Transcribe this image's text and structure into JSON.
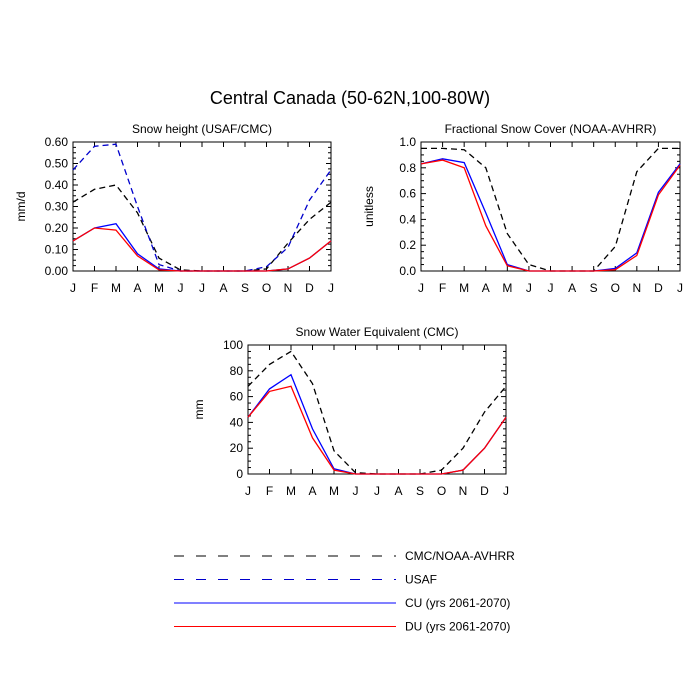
{
  "figure": {
    "title": "Central Canada (50-62N,100-80W)"
  },
  "colors": {
    "cmc": "#000000",
    "usaf": "#0000cc",
    "cu": "#0000ff",
    "du": "#ff0000"
  },
  "months": [
    "J",
    "F",
    "M",
    "A",
    "M",
    "J",
    "J",
    "A",
    "S",
    "O",
    "N",
    "D",
    "J"
  ],
  "chart_data": [
    {
      "id": "snow-height",
      "type": "line",
      "title": "Snow height (USAF/CMC)",
      "ylabel": "mm/d",
      "xlabel": "",
      "ylim": [
        0,
        0.6
      ],
      "yticks": [
        "0.00",
        "0.10",
        "0.20",
        "0.30",
        "0.40",
        "0.50",
        "0.60"
      ],
      "yticks_values": [
        0,
        0.1,
        0.2,
        0.3,
        0.4,
        0.5,
        0.6
      ],
      "series": [
        {
          "key": "cmc",
          "dashed": true,
          "values": [
            0.32,
            0.38,
            0.4,
            0.27,
            0.06,
            0.005,
            0.0,
            0.0,
            0.0,
            0.01,
            0.13,
            0.24,
            0.32
          ]
        },
        {
          "key": "usaf",
          "dashed": true,
          "values": [
            0.47,
            0.58,
            0.59,
            0.3,
            0.03,
            0.0,
            0.0,
            0.0,
            0.0,
            0.02,
            0.11,
            0.33,
            0.47
          ]
        },
        {
          "key": "cu",
          "dashed": false,
          "values": [
            0.14,
            0.2,
            0.22,
            0.08,
            0.01,
            0.0,
            0.0,
            0.0,
            0.0,
            0.0,
            0.01,
            0.06,
            0.14
          ]
        },
        {
          "key": "du",
          "dashed": false,
          "values": [
            0.14,
            0.2,
            0.19,
            0.07,
            0.005,
            0.0,
            0.0,
            0.0,
            0.0,
            0.0,
            0.01,
            0.06,
            0.14
          ]
        }
      ]
    },
    {
      "id": "snow-cover",
      "type": "line",
      "title": "Fractional Snow Cover (NOAA-AVHRR)",
      "ylabel": "unitless",
      "xlabel": "",
      "ylim": [
        0,
        1.0
      ],
      "yticks": [
        "0.0",
        "0.2",
        "0.4",
        "0.6",
        "0.8",
        "1.0"
      ],
      "yticks_values": [
        0,
        0.2,
        0.4,
        0.6,
        0.8,
        1.0
      ],
      "series": [
        {
          "key": "cmc",
          "dashed": true,
          "values": [
            0.95,
            0.95,
            0.94,
            0.8,
            0.29,
            0.05,
            0.0,
            0.0,
            0.0,
            0.19,
            0.77,
            0.95,
            0.95
          ]
        },
        {
          "key": "cu",
          "dashed": false,
          "values": [
            0.83,
            0.87,
            0.84,
            0.45,
            0.05,
            0.0,
            0.0,
            0.0,
            0.0,
            0.02,
            0.14,
            0.61,
            0.83
          ]
        },
        {
          "key": "du",
          "dashed": false,
          "values": [
            0.83,
            0.86,
            0.8,
            0.35,
            0.04,
            0.0,
            0.0,
            0.0,
            0.0,
            0.01,
            0.12,
            0.59,
            0.82
          ]
        }
      ]
    },
    {
      "id": "swe",
      "type": "line",
      "title": "Snow Water Equivalent (CMC)",
      "ylabel": "mm",
      "xlabel": "",
      "ylim": [
        0,
        100
      ],
      "yticks": [
        "0",
        "20",
        "40",
        "60",
        "80",
        "100"
      ],
      "yticks_values": [
        0,
        20,
        40,
        60,
        80,
        100
      ],
      "series": [
        {
          "key": "cmc",
          "dashed": true,
          "values": [
            68,
            85,
            95,
            70,
            18,
            1,
            0,
            0,
            0,
            3,
            20,
            48,
            68
          ]
        },
        {
          "key": "cu",
          "dashed": false,
          "values": [
            44,
            66,
            77,
            35,
            4,
            0,
            0,
            0,
            0,
            0,
            3,
            20,
            44
          ]
        },
        {
          "key": "du",
          "dashed": false,
          "values": [
            44,
            64,
            68,
            28,
            3,
            0,
            0,
            0,
            0,
            0,
            3,
            20,
            44
          ]
        }
      ]
    }
  ],
  "legend": {
    "items": [
      {
        "key": "cmc",
        "dashed": true,
        "label": "CMC/NOAA-AVHRR"
      },
      {
        "key": "usaf",
        "dashed": true,
        "label": "USAF"
      },
      {
        "key": "cu",
        "dashed": false,
        "label": "CU (yrs 2061-2070)"
      },
      {
        "key": "du",
        "dashed": false,
        "label": "DU (yrs 2061-2070)"
      }
    ]
  }
}
